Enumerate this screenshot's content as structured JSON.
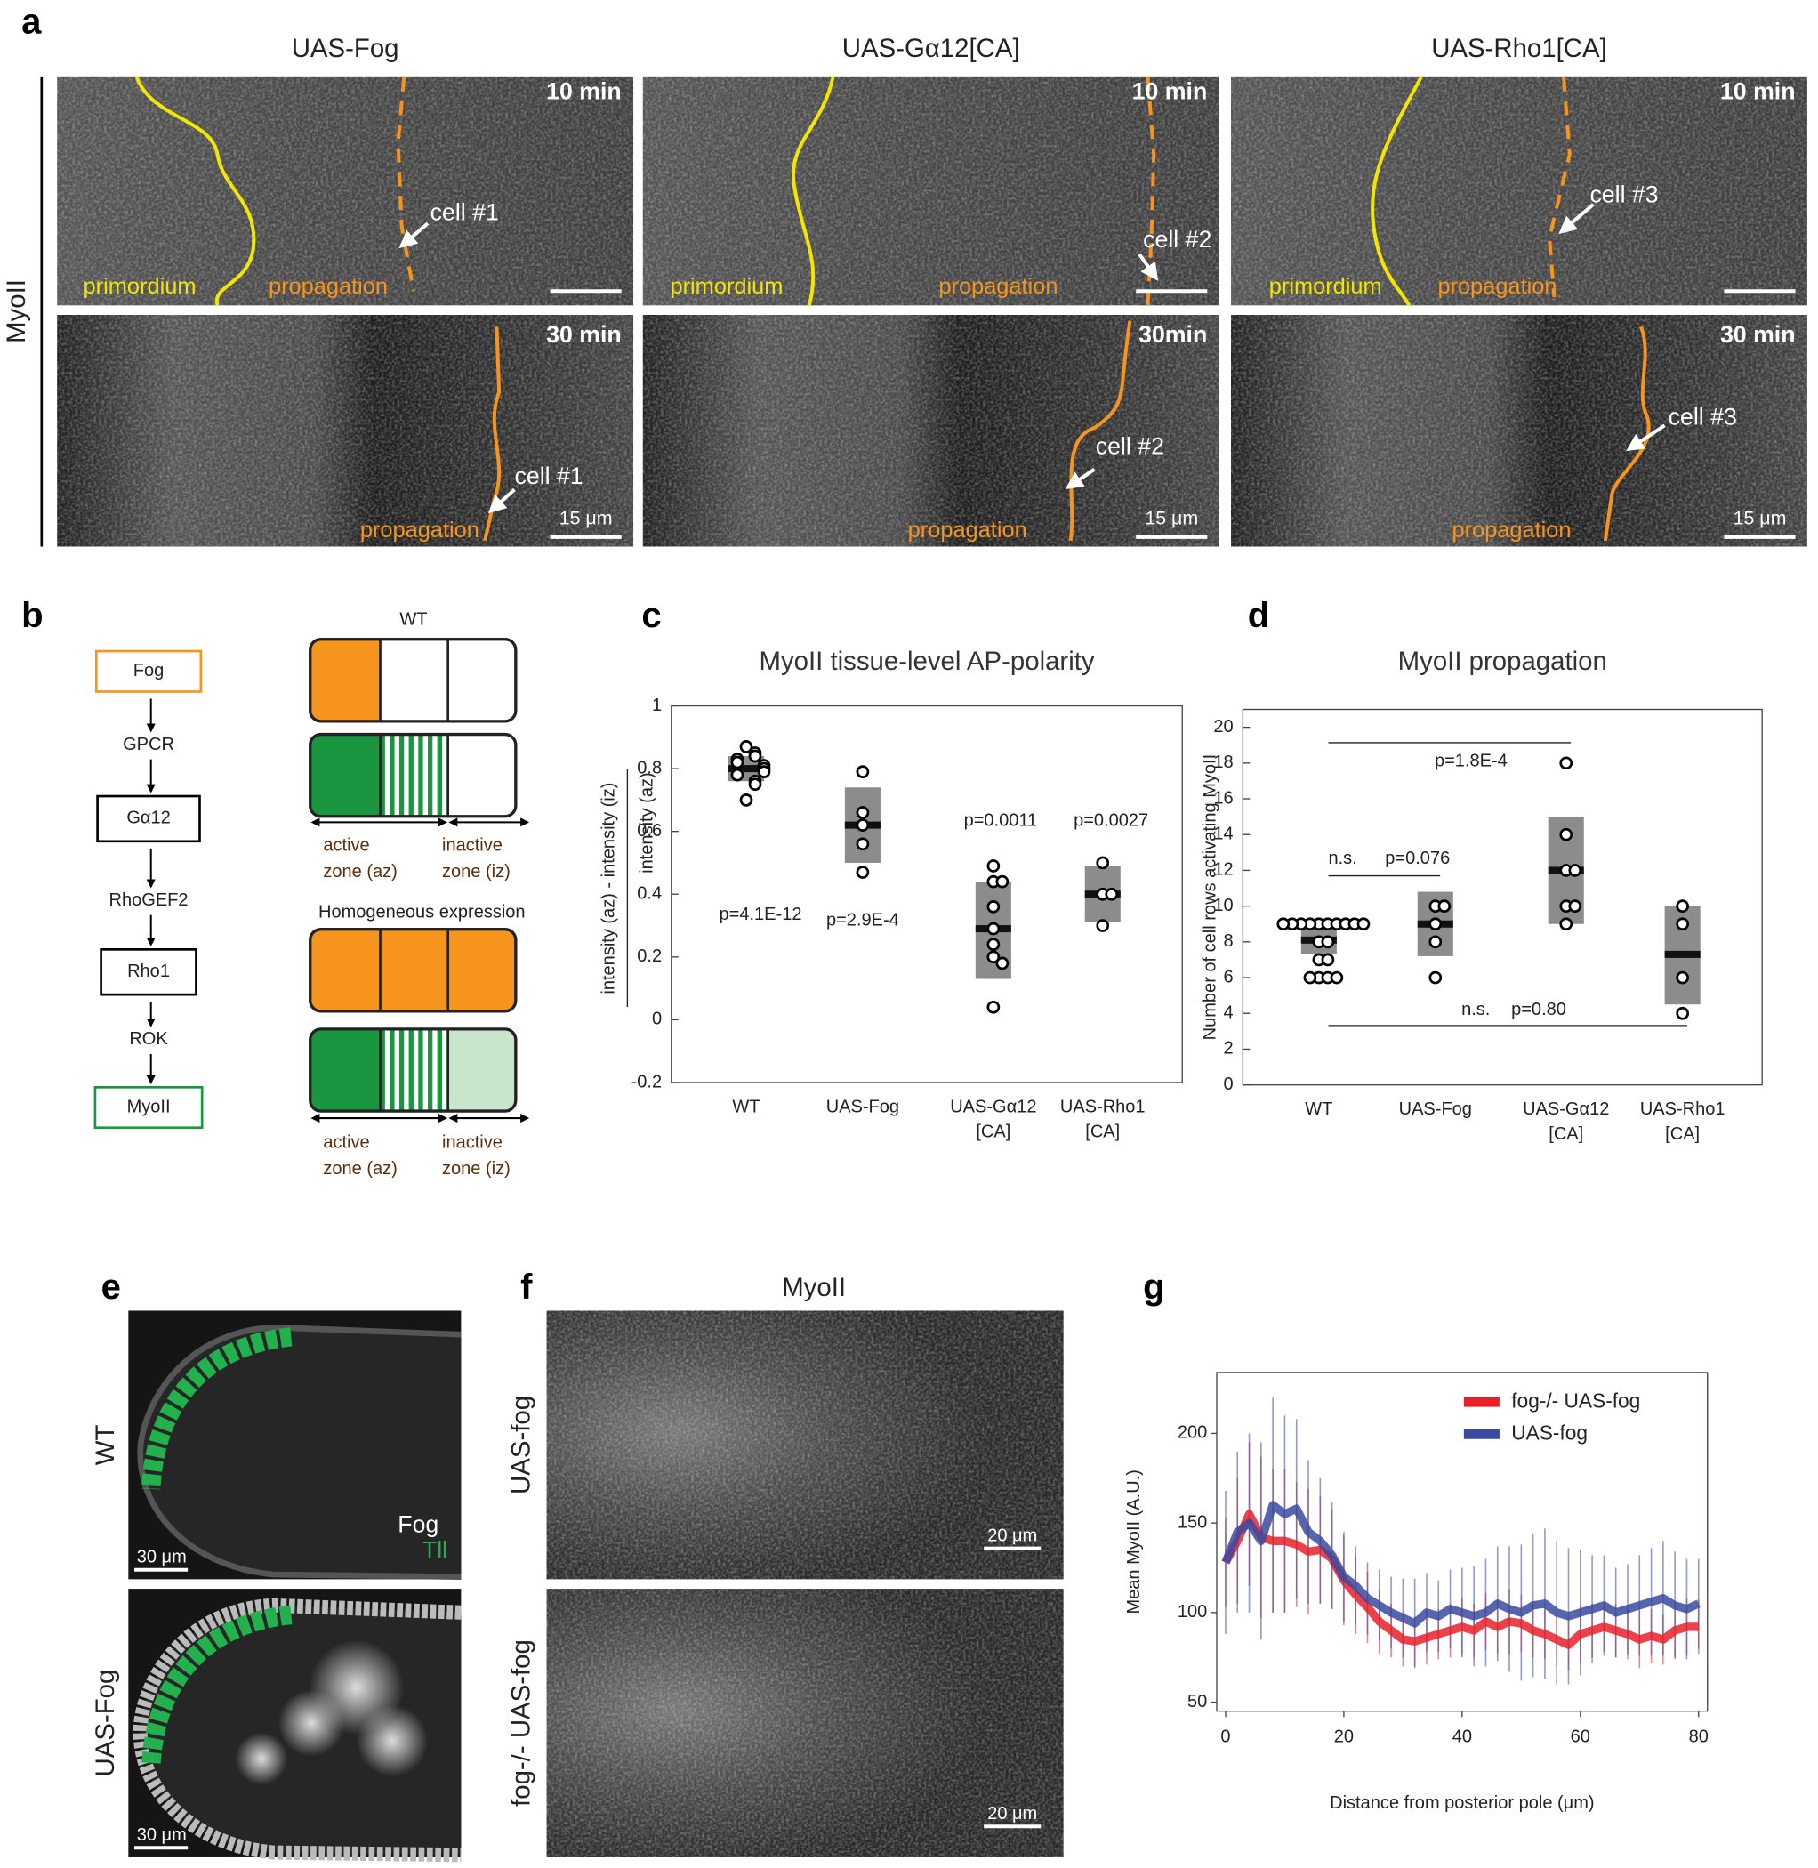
{
  "panel_a": {
    "label": "a",
    "row_label": "MyoII",
    "columns": [
      {
        "header": "UAS-Fog",
        "top": {
          "time": "10 min",
          "primordium": "primordium",
          "propagation": "propagation",
          "cell": "cell #1"
        },
        "bottom": {
          "time": "30 min",
          "cell": "cell #1",
          "propagation": "propagation",
          "scale": "15 μm"
        }
      },
      {
        "header": "UAS-Gα12[CA]",
        "top": {
          "time": "10 min",
          "primordium": "primordium",
          "propagation": "propagation",
          "cell": "cell #2"
        },
        "bottom": {
          "time": "30min",
          "cell": "cell #2",
          "propagation": "propagation",
          "scale": "15 μm"
        }
      },
      {
        "header": "UAS-Rho1[CA]",
        "top": {
          "time": "10 min",
          "primordium": "primordium",
          "propagation": "propagation",
          "cell": "cell #3"
        },
        "bottom": {
          "time": "30 min",
          "cell": "cell #3",
          "propagation": "propagation",
          "scale": "15 μm"
        }
      }
    ]
  },
  "panel_b": {
    "label": "b",
    "pathway": [
      "Fog",
      "GPCR",
      "Gα12",
      "RhoGEF2",
      "Rho1",
      "ROK",
      "MyoII"
    ],
    "wt_title": "WT",
    "homogeneous_title": "Homogeneous expression",
    "zones": [
      {
        "active": [
          "active",
          "zone (az)"
        ],
        "inactive": [
          "inactive",
          "zone (iz)"
        ]
      },
      {
        "active": [
          "active",
          "zone (az)"
        ],
        "inactive": [
          "inactive",
          "zone (iz)"
        ]
      }
    ]
  },
  "panel_e": {
    "label": "e",
    "rows": [
      "WT",
      "UAS-Fog"
    ],
    "stain_fog": "Fog",
    "stain_tll": "Tll",
    "scales": [
      "30 μm",
      "30 μm"
    ]
  },
  "panel_f": {
    "label": "f",
    "title": "MyoII",
    "rows": [
      "UAS-fog",
      "fog-/- UAS-fog"
    ],
    "scales": [
      "20 μm",
      "20 μm"
    ]
  },
  "chart_data": [
    {
      "type": "dot",
      "panel_label": "c",
      "title": "MyoII tissue-level AP-polarity",
      "y_label": [
        "intensity (az) - intensity (iz)",
        "intensity (az)"
      ],
      "categories": [
        [
          "WT"
        ],
        [
          "UAS-Fog"
        ],
        [
          "UAS-Gα12",
          "[CA]"
        ],
        [
          "UAS-Rho1",
          "[CA]"
        ]
      ],
      "groups": [
        {
          "points": [
            0.87,
            0.85,
            0.84,
            0.83,
            0.82,
            0.81,
            0.8,
            0.79,
            0.78,
            0.76,
            0.75,
            0.7
          ],
          "mean": 0.8,
          "range": [
            0.76,
            0.84
          ],
          "p_label": "p=4.1E-12"
        },
        {
          "points": [
            0.79,
            0.66,
            0.62,
            0.56,
            0.47
          ],
          "mean": 0.62,
          "range": [
            0.5,
            0.74
          ],
          "p_label": "p=2.9E-4"
        },
        {
          "points": [
            0.49,
            0.44,
            0.44,
            0.36,
            0.29,
            0.24,
            0.2,
            0.18,
            0.04
          ],
          "mean": 0.29,
          "range": [
            0.13,
            0.44
          ],
          "p_label": "p=0.0011"
        },
        {
          "points": [
            0.5,
            0.4,
            0.4,
            0.3
          ],
          "mean": 0.4,
          "range": [
            0.31,
            0.49
          ],
          "p_label": "p=0.0027"
        }
      ],
      "ylim": [
        -0.2,
        1
      ],
      "yticks": [
        -0.2,
        0,
        0.2,
        0.4,
        0.6,
        0.8,
        1
      ],
      "box_color": "#8c8c8c",
      "mean_color": "#111111"
    },
    {
      "type": "dot",
      "panel_label": "d",
      "title": "MyoII propagation",
      "y_label": "Number of cell rows activating MyoII",
      "categories": [
        [
          "WT"
        ],
        [
          "UAS-Fog"
        ],
        [
          "UAS-Gα12",
          "[CA]"
        ],
        [
          "UAS-Rho1",
          "[CA]"
        ]
      ],
      "groups": [
        {
          "points": [
            9,
            9,
            9,
            9,
            9,
            9,
            9,
            9,
            9,
            9,
            8,
            8,
            7,
            7,
            6,
            6,
            6,
            6
          ],
          "mean": 8.1,
          "range": [
            7.3,
            9
          ]
        },
        {
          "points": [
            10,
            10,
            9,
            8,
            6
          ],
          "mean": 9,
          "range": [
            7.2,
            10.8
          ]
        },
        {
          "points": [
            18,
            14,
            12,
            12,
            10,
            10,
            9
          ],
          "mean": 12,
          "range": [
            9,
            15
          ]
        },
        {
          "points": [
            10,
            9,
            6,
            4
          ],
          "mean": 7.3,
          "range": [
            4.5,
            10
          ]
        }
      ],
      "brackets": [
        {
          "between": [
            0,
            2
          ],
          "labels": [
            "p=1.8E-4"
          ]
        },
        {
          "between": [
            0,
            1
          ],
          "labels": [
            "n.s.",
            "p=0.076"
          ]
        },
        {
          "between": [
            0,
            3
          ],
          "labels": [
            "n.s.",
            "p=0.80"
          ]
        }
      ],
      "ylim": [
        0,
        21
      ],
      "yticks": [
        0,
        2,
        4,
        6,
        8,
        10,
        12,
        14,
        16,
        18,
        20
      ],
      "box_color": "#8c8c8c",
      "mean_color": "#111111"
    },
    {
      "type": "line",
      "panel_label": "g",
      "x_label": "Distance from posterior pole (μm)",
      "y_label": "Mean MyoII (A.U.)",
      "x": [
        0,
        2,
        4,
        6,
        8,
        10,
        12,
        14,
        16,
        18,
        20,
        22,
        24,
        26,
        28,
        30,
        32,
        34,
        36,
        38,
        40,
        42,
        44,
        46,
        48,
        50,
        52,
        54,
        56,
        58,
        60,
        62,
        64,
        66,
        68,
        70,
        72,
        74,
        76,
        78,
        80
      ],
      "series": [
        {
          "name": "fog-/- UAS-fog",
          "color": "#e8202a",
          "values": [
            128,
            140,
            155,
            142,
            140,
            140,
            138,
            134,
            135,
            130,
            118,
            110,
            103,
            95,
            90,
            85,
            84,
            86,
            88,
            90,
            92,
            90,
            95,
            92,
            95,
            94,
            90,
            88,
            85,
            82,
            88,
            90,
            92,
            90,
            88,
            85,
            87,
            85,
            90,
            92,
            92
          ],
          "errors": [
            25,
            35,
            40,
            45,
            40,
            40,
            35,
            35,
            30,
            28,
            25,
            22,
            20,
            18,
            15,
            15,
            14,
            15,
            14,
            15,
            16,
            15,
            16,
            15,
            18,
            16,
            15,
            14,
            15,
            14,
            16,
            15,
            14,
            15,
            14,
            16,
            15,
            14,
            15,
            16,
            15
          ]
        },
        {
          "name": "UAS-fog",
          "color": "#3a4aa0",
          "values": [
            128,
            145,
            150,
            140,
            160,
            155,
            158,
            145,
            140,
            132,
            120,
            115,
            108,
            104,
            100,
            97,
            94,
            100,
            98,
            102,
            100,
            98,
            100,
            105,
            102,
            100,
            104,
            105,
            100,
            98,
            100,
            102,
            104,
            100,
            102,
            104,
            106,
            108,
            104,
            102,
            105
          ],
          "errors": [
            40,
            45,
            50,
            55,
            60,
            55,
            50,
            40,
            35,
            30,
            25,
            22,
            20,
            20,
            20,
            22,
            25,
            22,
            20,
            22,
            25,
            28,
            30,
            32,
            35,
            38,
            40,
            42,
            40,
            38,
            35,
            30,
            28,
            25,
            25,
            28,
            30,
            32,
            30,
            28,
            25
          ]
        }
      ],
      "xlim": [
        -1.5,
        81.5
      ],
      "ylim": [
        45,
        234
      ],
      "xticks": [
        0,
        20,
        40,
        60,
        80
      ],
      "yticks": [
        50,
        100,
        150,
        200
      ],
      "legend": "upper right"
    }
  ]
}
